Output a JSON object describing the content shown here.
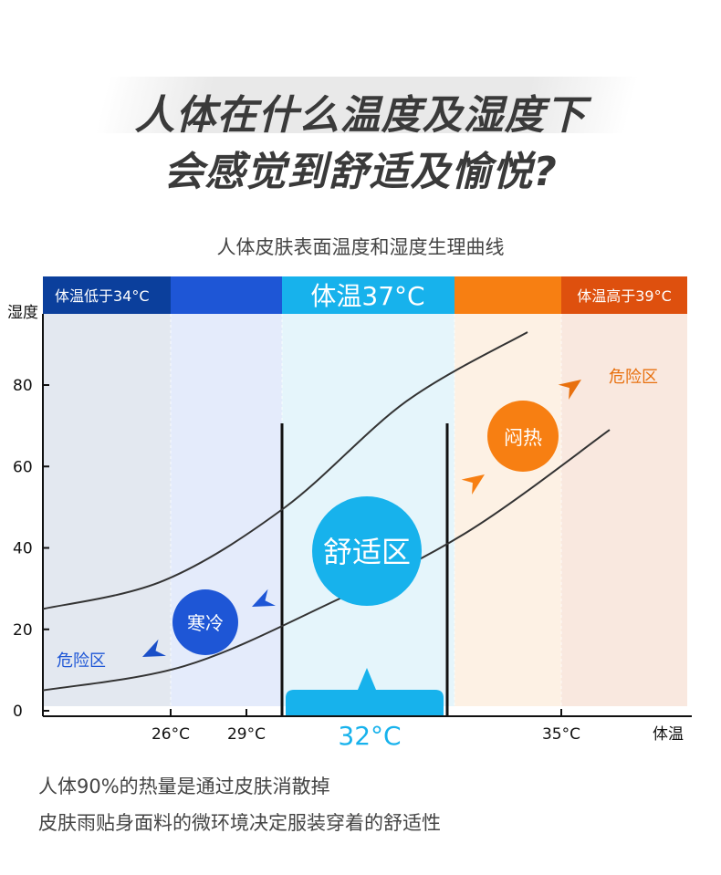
{
  "title": {
    "line1": "人体在什么温度及湿度下",
    "line2": "会感觉到舒适及愉悦?"
  },
  "subtitle": "人体皮肤表面温度和湿度生理曲线",
  "chart_data": {
    "type": "line",
    "ylabel": "湿度",
    "xlabel": "体温",
    "yticks": [
      0,
      20,
      40,
      60,
      80
    ],
    "ylim": [
      0,
      95
    ],
    "xticks": [
      "26°C",
      "29°C",
      "32°C",
      "35°C"
    ],
    "bands": [
      {
        "label": "体温低于34°C",
        "color": "#0b3f9c"
      },
      {
        "label": "",
        "color": "#1e56d6"
      },
      {
        "label": "体温37°C",
        "color": "#17b2ec"
      },
      {
        "label": "",
        "color": "#f77f12"
      },
      {
        "label": "体温高于39°C",
        "color": "#de500e"
      }
    ],
    "series": [
      {
        "values": [
          [
            0,
            25
          ],
          [
            0.25,
            32
          ],
          [
            0.5,
            50
          ],
          [
            0.75,
            76
          ],
          [
            1,
            93
          ]
        ]
      },
      {
        "values": [
          [
            0,
            5
          ],
          [
            0.25,
            11
          ],
          [
            0.5,
            26
          ],
          [
            0.75,
            44
          ],
          [
            1,
            69
          ]
        ]
      }
    ],
    "annotations": {
      "danger_low": "危险区",
      "cold": "寒冷",
      "comfort": "舒适区",
      "muggy": "闷热",
      "danger_high": "危险区"
    },
    "colors": {
      "cold": "#1e56d6",
      "comfort": "#17b2ec",
      "muggy": "#f77f12",
      "danger_high": "#e8700e"
    }
  },
  "footer": {
    "line1": "人体90%的热量是通过皮肤消散掉",
    "line2": "皮肤雨贴身面料的微环境决定服装穿着的舒适性"
  }
}
